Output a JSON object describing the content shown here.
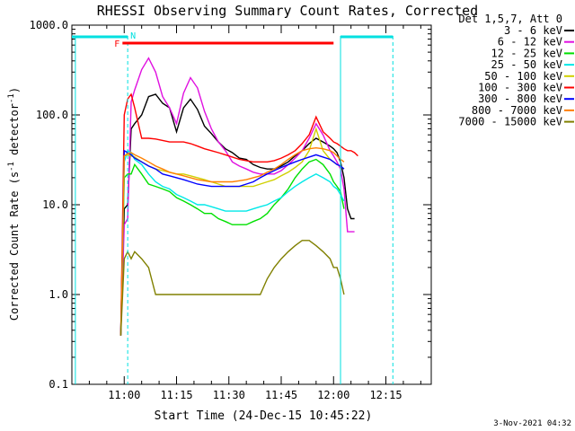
{
  "chart_data": {
    "type": "line",
    "title": "RHESSI Observing Summary Count Rates, Corrected",
    "xlabel": "Start Time (24-Dec-15 10:45:22)",
    "ylabel": "Corrected Count Rate (s",
    "ylabel_sup": "-1",
    "ylabel_tail": " detector",
    "ylabel_sup2": "-1",
    "ylabel_end": ")",
    "y_scale": "log",
    "ylim": [
      0.1,
      1000
    ],
    "y_ticks": [
      "0.1",
      "1.0",
      "10.0",
      "100.0",
      "1000.0"
    ],
    "x_ticks": [
      "11:00",
      "11:15",
      "11:30",
      "11:45",
      "12:00",
      "12:15"
    ],
    "x_tick_minutes": [
      0,
      15,
      30,
      45,
      60,
      75
    ],
    "x_range_minutes": [
      -15,
      88
    ],
    "legend_header": "Det 1,5,7, Att 0",
    "legend_position": "top-right",
    "footer_date": "3-Nov-2021 04:32",
    "flag_labels": {
      "flare": "F",
      "night": "N"
    },
    "flare_interval_minutes": [
      -0.5,
      60
    ],
    "night_intervals_minutes": [
      [
        -15,
        1
      ],
      [
        62,
        77
      ]
    ],
    "vertical_markers_minutes": [
      -14,
      1,
      62,
      77
    ],
    "time_points_minutes": [
      -1,
      0,
      1,
      2,
      3,
      5,
      7,
      9,
      11,
      13,
      15,
      17,
      19,
      21,
      23,
      25,
      27,
      29,
      31,
      33,
      35,
      37,
      39,
      41,
      43,
      45,
      47,
      49,
      51,
      53,
      55,
      57,
      59,
      60,
      61,
      62,
      63,
      64,
      65,
      66,
      67,
      68
    ],
    "series": [
      {
        "name": "3 - 6 keV",
        "color": "#000000",
        "values": [
          0.35,
          9,
          10,
          70,
          80,
          100,
          160,
          170,
          135,
          120,
          65,
          120,
          150,
          115,
          75,
          62,
          50,
          42,
          38,
          33,
          32,
          28,
          26,
          25,
          25,
          27,
          30,
          35,
          40,
          48,
          55,
          50,
          45,
          42,
          38,
          30,
          20,
          9,
          7,
          7,
          null,
          null
        ]
      },
      {
        "name": "6 - 12 keV",
        "color": "#e010e0",
        "values": [
          0.35,
          6,
          7,
          140,
          190,
          320,
          430,
          300,
          160,
          120,
          80,
          175,
          260,
          200,
          110,
          70,
          50,
          40,
          30,
          27,
          25,
          23,
          22,
          22,
          22,
          24,
          28,
          33,
          40,
          55,
          80,
          60,
          40,
          35,
          30,
          25,
          15,
          5,
          5,
          5,
          null,
          null
        ]
      },
      {
        "name": "12 - 25 keV",
        "color": "#00e000",
        "values": [
          0.35,
          20,
          22,
          22,
          28,
          22,
          17,
          16,
          15,
          14,
          12,
          11,
          10,
          9,
          8,
          8,
          7,
          6.5,
          6,
          6,
          6,
          6.5,
          7,
          8,
          10,
          12,
          15,
          20,
          25,
          30,
          32,
          28,
          22,
          18,
          16,
          14,
          9,
          null,
          null,
          null,
          null,
          null
        ]
      },
      {
        "name": "25 - 50 keV",
        "color": "#00e8e8",
        "values": [
          0.35,
          30,
          40,
          38,
          32,
          28,
          22,
          18,
          16,
          15,
          13,
          12,
          11,
          10,
          10,
          9.5,
          9,
          8.5,
          8.5,
          8.5,
          8.5,
          9,
          9.5,
          10,
          11,
          12,
          14,
          16,
          18,
          20,
          22,
          20,
          18,
          16,
          15,
          13,
          11,
          null,
          null,
          null,
          null,
          null
        ]
      },
      {
        "name": "50 - 100 keV",
        "color": "#d0d000",
        "values": [
          0.35,
          35,
          36,
          35,
          34,
          30,
          27,
          25,
          24,
          23,
          22,
          22,
          21,
          20,
          19,
          18,
          17,
          16,
          16,
          16,
          16,
          16,
          17,
          18,
          19,
          21,
          23,
          26,
          30,
          40,
          70,
          40,
          32,
          30,
          28,
          27,
          25,
          null,
          null,
          null,
          null,
          null
        ]
      },
      {
        "name": "100 - 300 keV",
        "color": "#ff0000",
        "values": [
          0.35,
          100,
          150,
          170,
          120,
          55,
          55,
          54,
          52,
          50,
          50,
          50,
          48,
          45,
          42,
          40,
          38,
          36,
          34,
          32,
          31,
          30,
          30,
          30,
          31,
          33,
          36,
          40,
          48,
          60,
          95,
          65,
          55,
          50,
          48,
          45,
          42,
          40,
          40,
          38,
          35,
          null
        ]
      },
      {
        "name": "300 - 800 keV",
        "color": "#0000ff",
        "values": [
          0.35,
          40,
          38,
          36,
          33,
          30,
          27,
          25,
          22,
          21,
          20,
          19,
          18,
          17,
          16.5,
          16,
          16,
          16,
          16,
          16,
          17,
          18,
          20,
          22,
          24,
          26,
          28,
          30,
          32,
          34,
          36,
          34,
          32,
          30,
          28,
          27,
          25,
          null,
          null,
          null,
          null,
          null
        ]
      },
      {
        "name": "800 - 7000 keV",
        "color": "#ff8000",
        "values": [
          0.35,
          35,
          37,
          38,
          36,
          33,
          30,
          27,
          25,
          23,
          22,
          21,
          20,
          19,
          18.5,
          18,
          18,
          18,
          18,
          18.5,
          19,
          20,
          21,
          23,
          25,
          28,
          32,
          36,
          40,
          42,
          43,
          42,
          40,
          38,
          35,
          32,
          30,
          null,
          null,
          null,
          null,
          null
        ]
      },
      {
        "name": "7000 - 15000 keV",
        "color": "#808000",
        "values": [
          0.35,
          2.5,
          3,
          2.5,
          3,
          2.5,
          2,
          1,
          1,
          1,
          1,
          1,
          1,
          1,
          1,
          1,
          1,
          1,
          1,
          1,
          1,
          1,
          1,
          1.5,
          2,
          2.5,
          3,
          3.5,
          4,
          4,
          3.5,
          3,
          2.5,
          2,
          2,
          1.5,
          1,
          null,
          null,
          null,
          null,
          null
        ]
      }
    ]
  }
}
